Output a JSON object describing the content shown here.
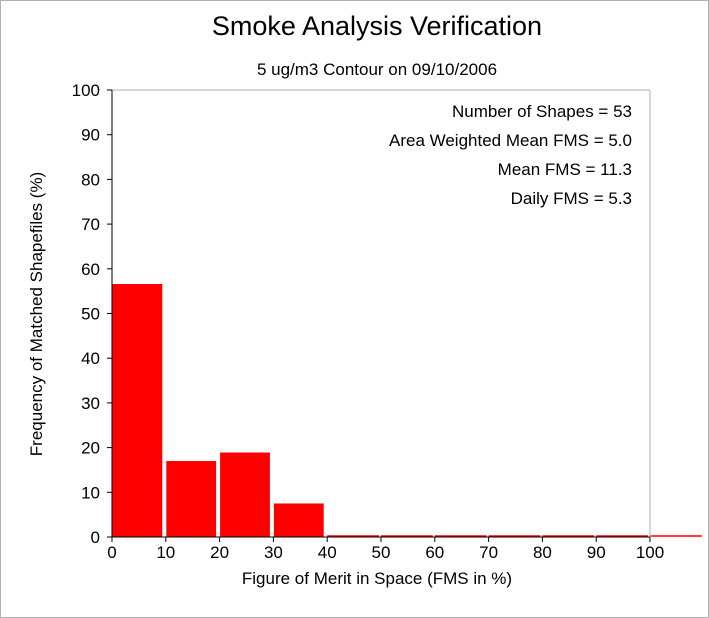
{
  "chart_data": {
    "type": "bar",
    "title": "Smoke Analysis Verification",
    "subtitle": "5 ug/m3 Contour on 09/10/2006",
    "xlabel": "Figure of Merit in Space (FMS in %)",
    "ylabel": "Frequency of Matched Shapefiles (%)",
    "xlim": [
      0,
      100
    ],
    "ylim": [
      0,
      100
    ],
    "xticks": [
      0,
      10,
      20,
      30,
      40,
      50,
      60,
      70,
      80,
      90,
      100
    ],
    "yticks": [
      0,
      10,
      20,
      30,
      40,
      50,
      60,
      70,
      80,
      90,
      100
    ],
    "bins": [
      {
        "from": 0,
        "to": 10,
        "value": 56.6
      },
      {
        "from": 10,
        "to": 20,
        "value": 17.0
      },
      {
        "from": 20,
        "to": 30,
        "value": 18.9
      },
      {
        "from": 30,
        "to": 40,
        "value": 7.5
      },
      {
        "from": 40,
        "to": 50,
        "value": 0
      },
      {
        "from": 50,
        "to": 60,
        "value": 0
      },
      {
        "from": 60,
        "to": 70,
        "value": 0
      },
      {
        "from": 70,
        "to": 80,
        "value": 0
      },
      {
        "from": 80,
        "to": 90,
        "value": 0
      },
      {
        "from": 90,
        "to": 100,
        "value": 0
      },
      {
        "from": 100,
        "to": 110,
        "value": 0
      }
    ],
    "bar_color": "#ff0000",
    "grid": false,
    "annotations": [
      "Number of Shapes = 53",
      "Area Weighted Mean FMS = 5.0",
      "Mean FMS = 11.3",
      "Daily FMS = 5.3"
    ]
  }
}
